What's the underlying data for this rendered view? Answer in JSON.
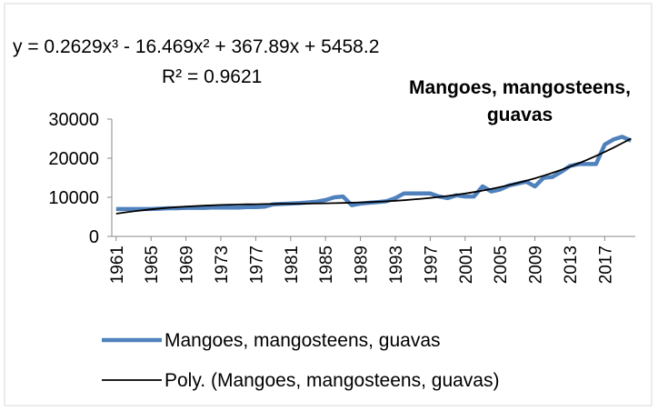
{
  "chart_data": {
    "type": "line",
    "title": "Mangoes, mangosteens, guavas",
    "annotations": [
      "y = 0.2629x³ - 16.469x² + 367.89x + 5458.2",
      "R² = 0.9621"
    ],
    "x": [
      1961,
      1962,
      1963,
      1964,
      1965,
      1966,
      1967,
      1968,
      1969,
      1970,
      1971,
      1972,
      1973,
      1974,
      1975,
      1976,
      1977,
      1978,
      1979,
      1980,
      1981,
      1982,
      1983,
      1984,
      1985,
      1986,
      1987,
      1988,
      1989,
      1990,
      1991,
      1992,
      1993,
      1994,
      1995,
      1996,
      1997,
      1998,
      1999,
      2000,
      2001,
      2002,
      2003,
      2004,
      2005,
      2006,
      2007,
      2008,
      2009,
      2010,
      2011,
      2012,
      2013,
      2014,
      2015,
      2016,
      2017,
      2018,
      2019,
      2020
    ],
    "series": [
      {
        "name": "Mangoes, mangosteens, guavas",
        "color": "#4f81bd",
        "values": [
          7000,
          7000,
          7000,
          7000,
          7000,
          7100,
          7200,
          7200,
          7300,
          7300,
          7300,
          7400,
          7400,
          7400,
          7400,
          7500,
          7500,
          7600,
          8200,
          8300,
          8400,
          8500,
          8700,
          8900,
          9300,
          10000,
          10200,
          8000,
          8400,
          8600,
          8800,
          9000,
          9800,
          11000,
          11000,
          11000,
          11000,
          10200,
          9800,
          10500,
          10200,
          10200,
          12800,
          11500,
          12000,
          13000,
          13500,
          14000,
          12800,
          15000,
          15200,
          16500,
          18000,
          18500,
          18500,
          18500,
          23500,
          24800,
          25500,
          24500
        ]
      },
      {
        "name": "Poly. (Mangoes, mangosteens, guavas)",
        "color": "#000000",
        "values": [
          5810,
          6130,
          6421,
          6683,
          6919,
          7129,
          7317,
          7482,
          7627,
          7753,
          7862,
          7956,
          8035,
          8102,
          8158,
          8205,
          8244,
          8277,
          8306,
          8332,
          8356,
          8380,
          8406,
          8436,
          8470,
          8511,
          8560,
          8619,
          8689,
          8771,
          8868,
          8982,
          9112,
          9261,
          9432,
          9625,
          9841,
          10083,
          10351,
          10649,
          10977,
          11336,
          11729,
          12157,
          12621,
          13123,
          13664,
          14246,
          14871,
          15543,
          16260,
          17023,
          17835,
          18699,
          19615,
          20585,
          21611,
          22693,
          23832,
          25029
        ]
      }
    ],
    "xlim": [
      1960.5,
      2020.5
    ],
    "xticks": [
      1961,
      1965,
      1969,
      1973,
      1977,
      1981,
      1985,
      1989,
      1993,
      1997,
      2001,
      2005,
      2009,
      2013,
      2017
    ],
    "ylim": [
      0,
      30000
    ],
    "yticks": [
      0,
      10000,
      20000,
      30000
    ],
    "grid": false
  }
}
